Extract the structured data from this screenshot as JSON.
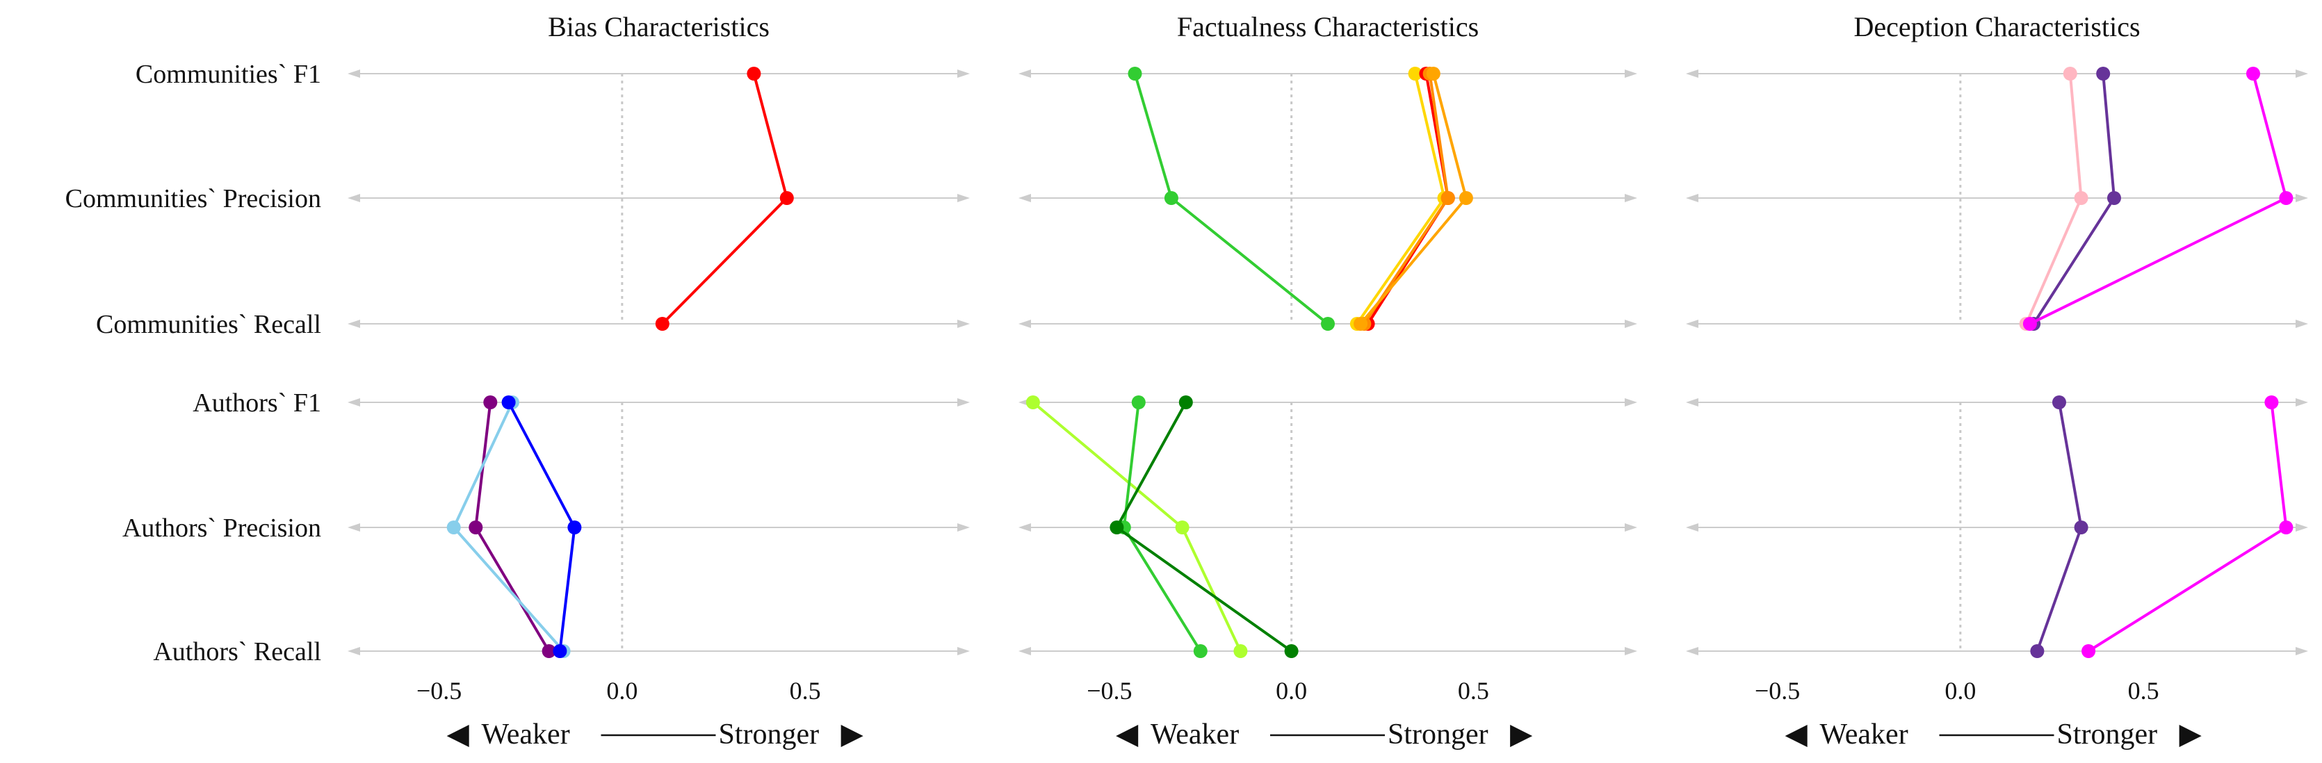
{
  "chart_data": {
    "type": "line",
    "x_range": [
      -0.75,
      0.95
    ],
    "x_ticks": [
      {
        "v": -0.5,
        "label": "−0.5"
      },
      {
        "v": 0.0,
        "label": "0.0"
      },
      {
        "v": 0.5,
        "label": "0.5"
      }
    ],
    "rows": [
      "Communities` F1",
      "Communities` Precision",
      "Communities` Recall",
      "Authors` F1",
      "Authors` Precision",
      "Authors` Recall"
    ],
    "footer": {
      "left_arrow": "◀",
      "left": "Weaker",
      "right": "Stronger",
      "right_arrow": "▶"
    },
    "panels": [
      {
        "title": "Bias Characteristics",
        "series": [
          {
            "group": "communities",
            "color": "#ff0000",
            "values": [
              0.36,
              0.45,
              0.11
            ]
          },
          {
            "group": "authors",
            "color": "#800080",
            "values": [
              -0.36,
              -0.4,
              -0.2
            ]
          },
          {
            "group": "authors",
            "color": "#87ceeb",
            "values": [
              -0.3,
              -0.46,
              -0.16
            ]
          },
          {
            "group": "authors",
            "color": "#0000ff",
            "values": [
              -0.31,
              -0.13,
              -0.17
            ]
          }
        ]
      },
      {
        "title": "Factualness Characteristics",
        "series": [
          {
            "group": "communities",
            "color": "#32cd32",
            "values": [
              -0.43,
              -0.33,
              0.1
            ]
          },
          {
            "group": "communities",
            "color": "#ffd700",
            "values": [
              0.34,
              0.42,
              0.18
            ]
          },
          {
            "group": "communities",
            "color": "#ff0000",
            "values": [
              0.37,
              0.43,
              0.21
            ]
          },
          {
            "group": "communities",
            "color": "#ff8c00",
            "values": [
              0.38,
              0.43,
              0.2
            ]
          },
          {
            "group": "communities",
            "color": "#ffa500",
            "values": [
              0.39,
              0.48,
              0.19
            ]
          },
          {
            "group": "authors",
            "color": "#adff2f",
            "values": [
              -0.71,
              -0.3,
              -0.14
            ]
          },
          {
            "group": "authors",
            "color": "#32cd32",
            "values": [
              -0.42,
              -0.46,
              -0.25
            ]
          },
          {
            "group": "authors",
            "color": "#008000",
            "values": [
              -0.29,
              -0.48,
              0.0
            ]
          }
        ]
      },
      {
        "title": "Deception Characteristics",
        "series": [
          {
            "group": "communities",
            "color": "#ffb6c1",
            "values": [
              0.3,
              0.33,
              0.18
            ]
          },
          {
            "group": "communities",
            "color": "#663399",
            "values": [
              0.39,
              0.42,
              0.2
            ]
          },
          {
            "group": "communities",
            "color": "#ff00ff",
            "values": [
              0.8,
              0.89,
              0.19
            ]
          },
          {
            "group": "authors",
            "color": "#663399",
            "values": [
              0.27,
              0.33,
              0.21
            ]
          },
          {
            "group": "authors",
            "color": "#ff00ff",
            "values": [
              0.85,
              0.89,
              0.35
            ]
          }
        ]
      }
    ]
  }
}
